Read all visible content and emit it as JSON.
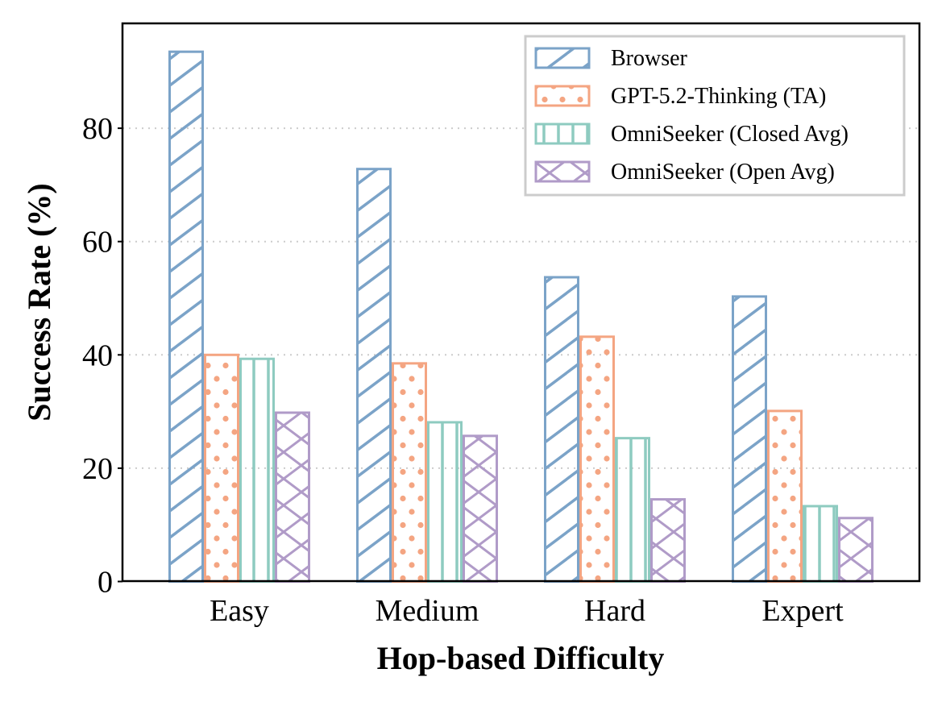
{
  "chart_data": {
    "type": "bar",
    "title": "",
    "xlabel": "Hop-based Difficulty",
    "ylabel": "Success Rate (%)",
    "categories": [
      "Easy",
      "Medium",
      "Hard",
      "Expert"
    ],
    "ylim": [
      0,
      98
    ],
    "yticks": [
      0,
      20,
      40,
      60,
      80
    ],
    "grid": "horizontal dotted",
    "legend_position": "top-right",
    "series": [
      {
        "name": "Browser",
        "values": [
          93.5,
          72.8,
          53.7,
          50.3
        ],
        "color": "#7BA3C8",
        "hatch": "diagonal"
      },
      {
        "name": "GPT-5.2-Thinking (TA)",
        "values": [
          40.0,
          38.5,
          43.2,
          30.1
        ],
        "color": "#F4A582",
        "hatch": "dots"
      },
      {
        "name": "OmniSeeker (Closed Avg)",
        "values": [
          39.3,
          28.1,
          25.3,
          13.3
        ],
        "color": "#8ECBC0",
        "hatch": "vertical"
      },
      {
        "name": "OmniSeeker (Open Avg)",
        "values": [
          29.8,
          25.7,
          14.5,
          11.2
        ],
        "color": "#B09BC8",
        "hatch": "crosshatch"
      }
    ]
  }
}
